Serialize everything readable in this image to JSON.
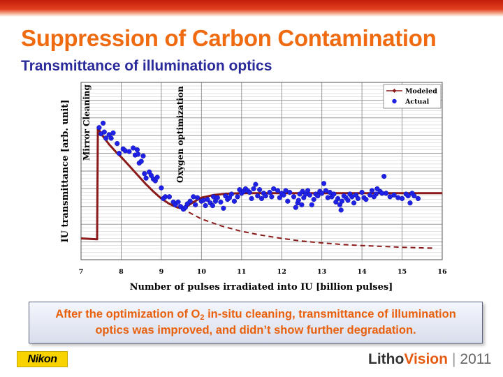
{
  "title": "Suppression of Carbon Contamination",
  "subtitle": "Transmittance of illumination optics",
  "callout": {
    "line1_before": "After the optimization of O",
    "line1_sub": "2",
    "line1_after": " in-situ cleaning, transmittance of illumination",
    "line2": "optics was improved, and didn’t show further degradation."
  },
  "footer": {
    "logo_text": "Nikon",
    "brand_a": "Litho",
    "brand_b": "Vision",
    "separator": "|",
    "year": "2011"
  },
  "colors": {
    "title": "#f06a10",
    "subtitle": "#2a2a9a",
    "modeled": "#8b1a1a",
    "actual": "#1f22e6"
  },
  "chart_data": {
    "type": "scatter",
    "xlabel": "Number of pulses irradiated into IU [billion pulses]",
    "ylabel": "IU transmittance [arb. unit]",
    "xlim": [
      7,
      16
    ],
    "x_ticks": [
      7,
      8,
      9,
      10,
      11,
      12,
      13,
      14,
      15,
      16
    ],
    "ylim": [
      0,
      10
    ],
    "y_tick_labels": false,
    "grid": true,
    "legend_position": "top-right",
    "annotations": [
      {
        "text": "Mirror Cleaning",
        "x": 7.4
      },
      {
        "text": "Oxygen optimization",
        "x": 9.5
      }
    ],
    "series": [
      {
        "name": "Modeled",
        "kind": "line",
        "style": "solid",
        "x": [
          7.0,
          7.4,
          7.42,
          7.5,
          7.6,
          7.7,
          7.8,
          7.9,
          8.0,
          8.2,
          8.4,
          8.6,
          8.8,
          9.0,
          9.2,
          9.4,
          9.5,
          9.6,
          9.8,
          10.0,
          10.3,
          10.6,
          11.0,
          12.0,
          13.0,
          14.0,
          15.0,
          16.0
        ],
        "y": [
          1.2,
          1.15,
          7.45,
          7.1,
          6.8,
          6.5,
          6.25,
          6.0,
          5.8,
          5.3,
          4.8,
          4.3,
          3.85,
          3.45,
          3.15,
          2.95,
          2.9,
          2.95,
          3.25,
          3.5,
          3.65,
          3.72,
          3.75,
          3.75,
          3.75,
          3.75,
          3.75,
          3.75
        ]
      },
      {
        "name": "Modeled extrapolation",
        "kind": "line",
        "style": "dashed",
        "legend": false,
        "x": [
          9.5,
          10.0,
          10.5,
          11.0,
          11.5,
          12.0,
          12.5,
          13.0,
          13.5,
          14.0,
          14.5,
          15.0,
          15.5,
          15.8
        ],
        "y": [
          2.9,
          2.3,
          1.9,
          1.6,
          1.38,
          1.2,
          1.05,
          0.95,
          0.86,
          0.8,
          0.75,
          0.7,
          0.67,
          0.65
        ]
      },
      {
        "name": "Actual",
        "kind": "scatter",
        "x": [
          7.45,
          7.5,
          7.55,
          7.58,
          7.62,
          7.7,
          7.75,
          7.8,
          7.9,
          7.95,
          8.05,
          8.1,
          8.2,
          8.3,
          8.35,
          8.4,
          8.42,
          8.45,
          8.5,
          8.55,
          8.58,
          8.62,
          8.7,
          8.75,
          8.8,
          8.85,
          8.9,
          9.0,
          9.05,
          9.1,
          9.2,
          9.3,
          9.35,
          9.42,
          9.48,
          9.55,
          9.6,
          9.65,
          9.72,
          9.8,
          9.85,
          9.9,
          10.0,
          10.05,
          10.1,
          10.15,
          10.22,
          10.28,
          10.3,
          10.35,
          10.4,
          10.48,
          10.55,
          10.6,
          10.65,
          10.7,
          10.75,
          10.82,
          10.9,
          10.95,
          11.0,
          11.05,
          11.1,
          11.15,
          11.2,
          11.25,
          11.3,
          11.35,
          11.4,
          11.45,
          11.5,
          11.55,
          11.6,
          11.7,
          11.75,
          11.8,
          11.9,
          11.95,
          12.0,
          12.05,
          12.1,
          12.15,
          12.2,
          12.3,
          12.35,
          12.4,
          12.42,
          12.45,
          12.5,
          12.52,
          12.55,
          12.6,
          12.65,
          12.7,
          12.75,
          12.8,
          12.85,
          12.9,
          12.95,
          13.0,
          13.05,
          13.1,
          13.15,
          13.2,
          13.25,
          13.3,
          13.35,
          13.4,
          13.45,
          13.48,
          13.5,
          13.55,
          13.6,
          13.65,
          13.7,
          13.75,
          13.8,
          13.85,
          13.9,
          14.0,
          14.05,
          14.1,
          14.2,
          14.25,
          14.3,
          14.35,
          14.38,
          14.45,
          14.5,
          14.55,
          14.6,
          14.7,
          14.8,
          14.9,
          15.0,
          15.1,
          15.15,
          15.2,
          15.25,
          15.3,
          15.4
        ],
        "y": [
          7.45,
          7.1,
          7.7,
          7.2,
          6.85,
          7.05,
          6.85,
          7.15,
          6.55,
          6.0,
          6.25,
          6.15,
          6.1,
          6.3,
          5.9,
          6.2,
          5.95,
          5.45,
          5.55,
          5.85,
          4.85,
          4.6,
          4.95,
          4.75,
          4.55,
          4.45,
          4.65,
          4.05,
          3.45,
          3.55,
          3.55,
          3.25,
          3.1,
          3.25,
          3.0,
          2.85,
          2.95,
          3.15,
          3.3,
          3.55,
          3.1,
          3.5,
          3.3,
          3.35,
          3.05,
          3.4,
          3.2,
          3.05,
          3.55,
          3.3,
          3.5,
          3.25,
          2.9,
          3.6,
          3.4,
          3.5,
          3.7,
          3.3,
          3.55,
          3.95,
          3.75,
          3.85,
          4.0,
          3.9,
          3.8,
          3.45,
          4.0,
          4.25,
          3.6,
          3.95,
          3.45,
          3.75,
          3.6,
          3.8,
          3.55,
          4.0,
          3.9,
          3.5,
          3.75,
          3.65,
          3.9,
          3.3,
          3.8,
          3.55,
          2.95,
          3.2,
          3.35,
          3.7,
          3.1,
          3.85,
          3.5,
          3.7,
          3.9,
          3.65,
          3.1,
          3.4,
          3.7,
          3.6,
          3.85,
          3.75,
          4.3,
          3.9,
          3.5,
          3.8,
          3.55,
          3.7,
          3.25,
          3.45,
          3.1,
          2.8,
          3.3,
          3.6,
          3.5,
          3.35,
          3.7,
          3.55,
          3.2,
          3.65,
          3.45,
          3.8,
          3.5,
          3.4,
          3.65,
          3.9,
          3.55,
          3.7,
          4.0,
          3.85,
          3.75,
          4.7,
          3.75,
          3.55,
          3.65,
          3.5,
          3.45,
          3.7,
          3.6,
          3.2,
          3.75,
          3.6,
          3.45
        ]
      }
    ]
  }
}
